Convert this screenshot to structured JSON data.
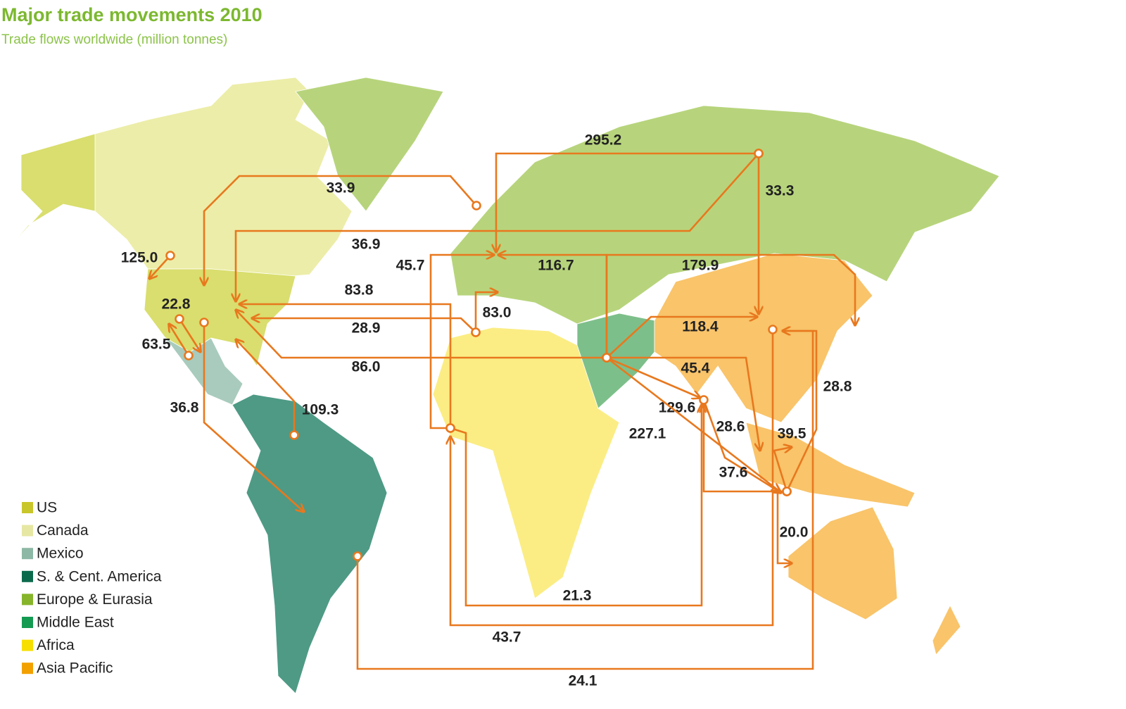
{
  "header": {
    "title": "Major trade movements 2010",
    "subtitle": "Trade flows worldwide (million tonnes)"
  },
  "legend": [
    {
      "name": "US",
      "color": "#c9c62b"
    },
    {
      "name": "Canada",
      "color": "#e6e7a3"
    },
    {
      "name": "Mexico",
      "color": "#8db8a5"
    },
    {
      "name": "S. & Cent. America",
      "color": "#0c6a4c"
    },
    {
      "name": "Europe & Eurasia",
      "color": "#86b42b"
    },
    {
      "name": "Middle East",
      "color": "#159a52"
    },
    {
      "name": "Africa",
      "color": "#f7df00"
    },
    {
      "name": "Asia Pacific",
      "color": "#f2a000"
    }
  ],
  "flows": [
    "295.2",
    "33.3",
    "36.9",
    "33.9",
    "125.0",
    "22.8",
    "63.5",
    "36.8",
    "109.3",
    "83.8",
    "45.7",
    "83.0",
    "28.9",
    "86.0",
    "116.7",
    "179.9",
    "118.4",
    "45.4",
    "129.6",
    "227.1",
    "28.6",
    "37.6",
    "39.5",
    "20.0",
    "28.8",
    "21.3",
    "43.7",
    "24.1"
  ]
}
